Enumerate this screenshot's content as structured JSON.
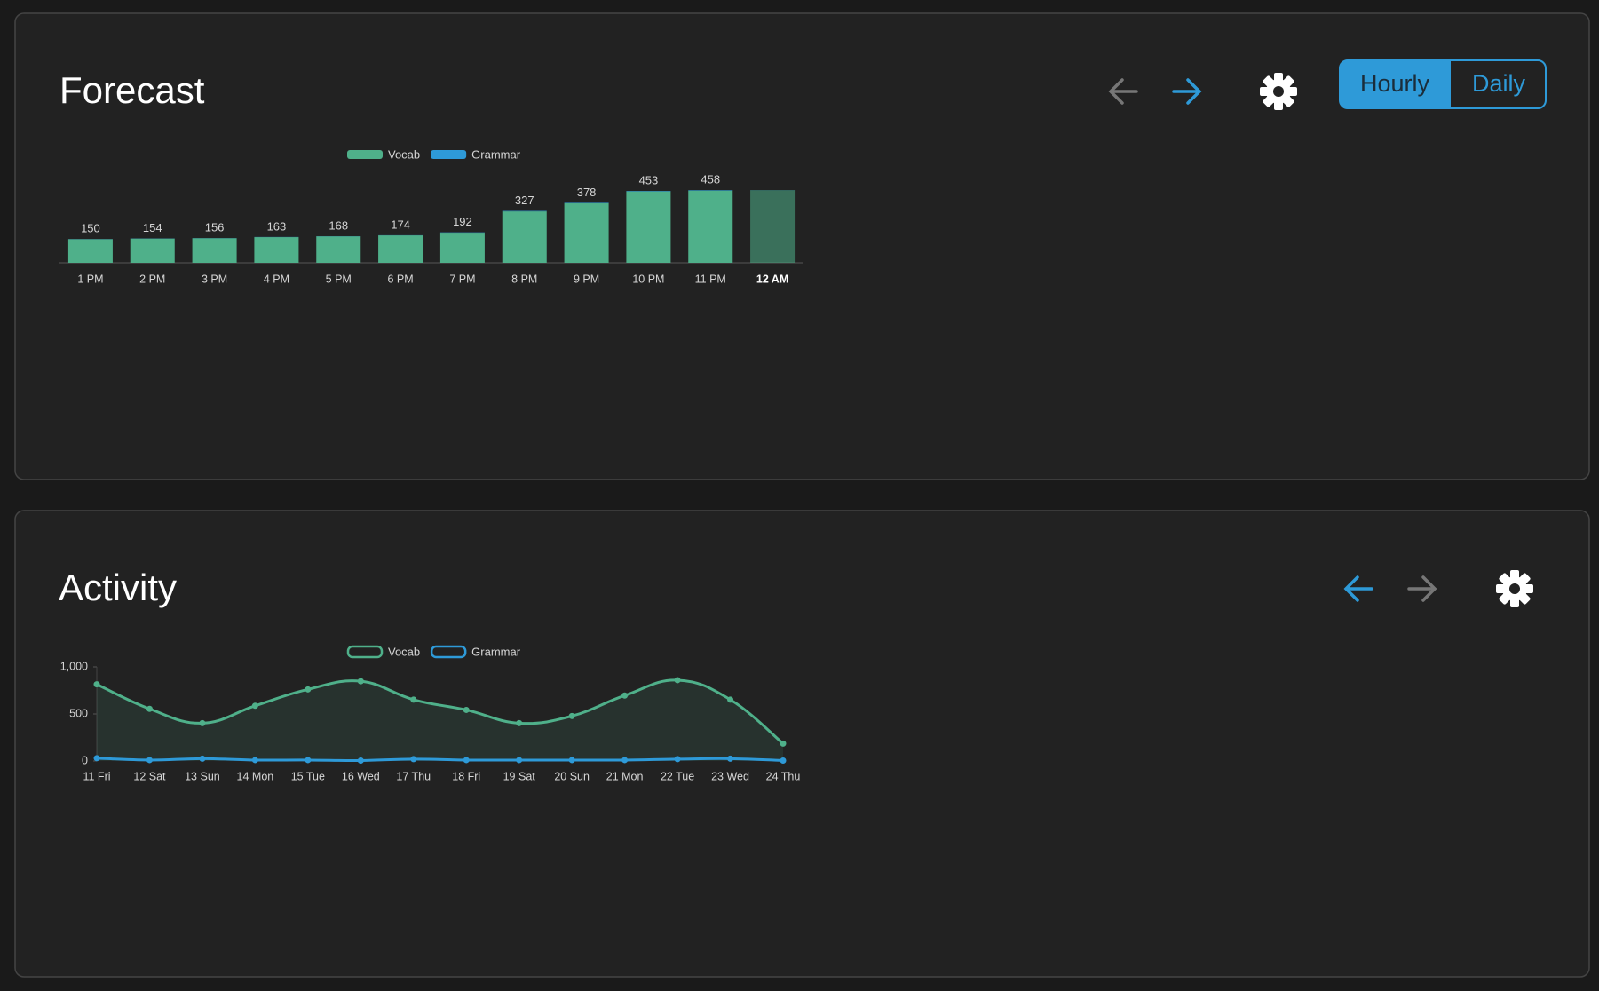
{
  "panels": [
    {
      "title": "Forecast",
      "toggle": [
        "Hourly",
        "Daily"
      ]
    },
    {
      "title": "Activity"
    }
  ],
  "chart_data": [
    {
      "type": "bar",
      "stacked": true,
      "categories": [
        "1 PM",
        "2 PM",
        "3 PM",
        "4 PM",
        "5 PM",
        "6 PM",
        "7 PM",
        "8 PM",
        "9 PM",
        "10 PM",
        "11 PM",
        "12 AM"
      ],
      "highlighted": 11,
      "series": [
        {
          "name": "Vocab",
          "color": "#4fb08a",
          "values": [
            149,
            153,
            155,
            162,
            167,
            173,
            190,
            324,
            375,
            450,
            455,
            458
          ]
        },
        {
          "name": "Grammar",
          "color": "#2e9ad8",
          "values": [
            1,
            1,
            1,
            1,
            1,
            1,
            2,
            3,
            3,
            3,
            3,
            1
          ]
        }
      ],
      "totals": [
        150,
        154,
        156,
        163,
        168,
        174,
        192,
        327,
        378,
        453,
        458,
        null
      ]
    },
    {
      "type": "line",
      "categories": [
        "11 Fri",
        "12 Sat",
        "13 Sun",
        "14 Mon",
        "15 Tue",
        "16 Wed",
        "17 Thu",
        "18 Fri",
        "19 Sat",
        "20 Sun",
        "21 Mon",
        "22 Tue",
        "23 Wed",
        "24 Thu"
      ],
      "series": [
        {
          "name": "Vocab",
          "color": "#4fb08a",
          "fill": true,
          "values": [
            815,
            554,
            402,
            587,
            761,
            848,
            652,
            543,
            402,
            478,
            696,
            859,
            652,
            185
          ]
        },
        {
          "name": "Grammar",
          "color": "#2e9ad8",
          "fill": false,
          "values": [
            30,
            10,
            25,
            10,
            10,
            5,
            20,
            10,
            10,
            10,
            10,
            20,
            25,
            5
          ]
        }
      ],
      "ylim": [
        0,
        1000
      ],
      "yticks": [
        0,
        500,
        {
          "value": 1000,
          "label": "1,000"
        }
      ]
    }
  ]
}
